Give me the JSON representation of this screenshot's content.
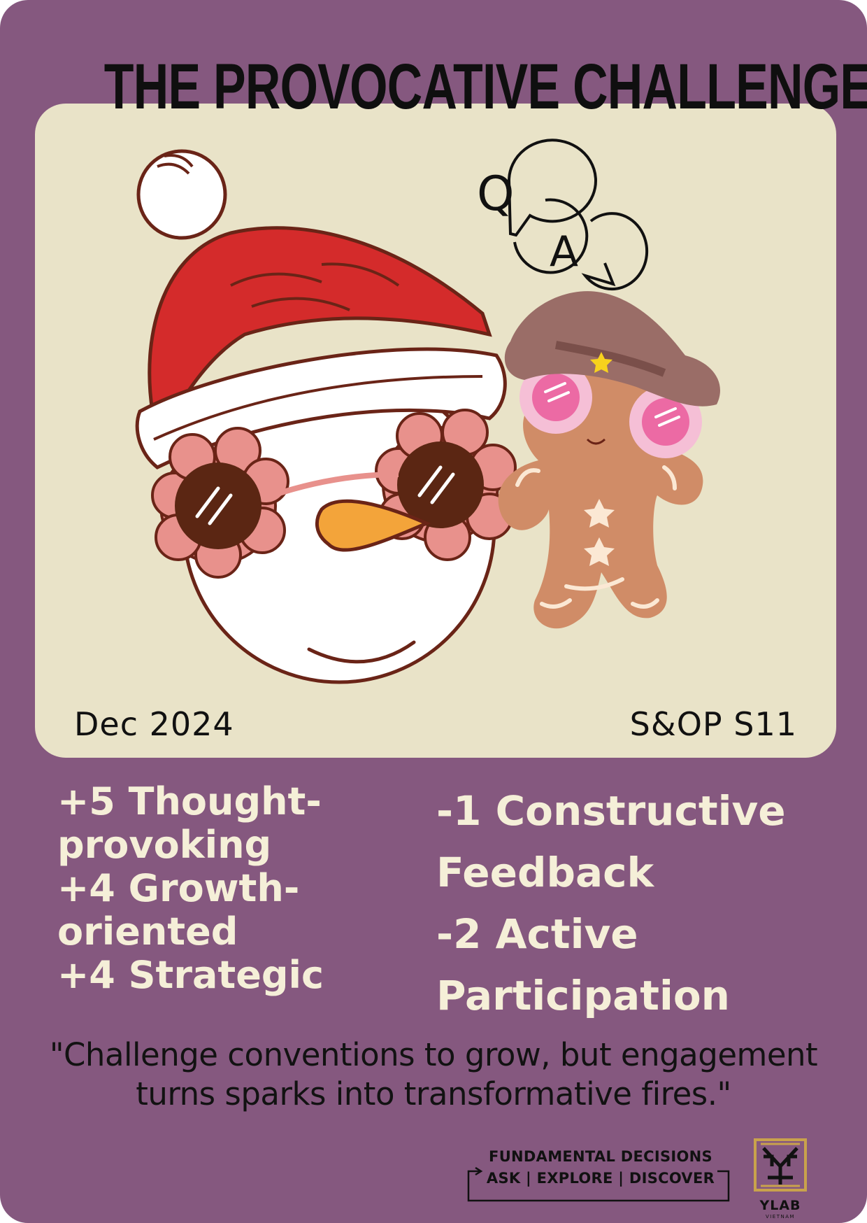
{
  "title": "THE PROVOCATIVE CHALLENGER",
  "date": "Dec 2024",
  "session": "S&OP S11",
  "qa_bubble": {
    "question_letter": "Q",
    "answer_letter": "A"
  },
  "positive_stats": [
    "+5 Thought-\nprovoking",
    "+4 Growth-\noriented",
    "+4 Strategic"
  ],
  "negative_stats": [
    "-1 Constructive\nFeedback",
    "-2 Active\nParticipation"
  ],
  "quote": "\"Challenge conventions to grow, but engagement turns sparks into transformative fires.\"",
  "footer": {
    "line1": "FUNDAMENTAL DECISIONS",
    "line2": "ASK | EXPLORE | DISCOVER"
  },
  "logo": {
    "name": "YLAB",
    "sub": "VIETNAM"
  },
  "colors": {
    "background": "#85587f",
    "panel": "#e9e3c8",
    "stat_text": "#f5efd8",
    "santa_hat_red": "#d42b2b",
    "glasses_pink": "#e8918c",
    "carrot": "#f3a43a",
    "cowboy_hat": "#9a6d67",
    "gingerbread": "#d08c67"
  },
  "icons": [
    "snowman-illustration",
    "gingerbread-illustration",
    "qa-speech-bubbles-icon",
    "ylab-logo-icon",
    "bracket-arrow-icon"
  ]
}
